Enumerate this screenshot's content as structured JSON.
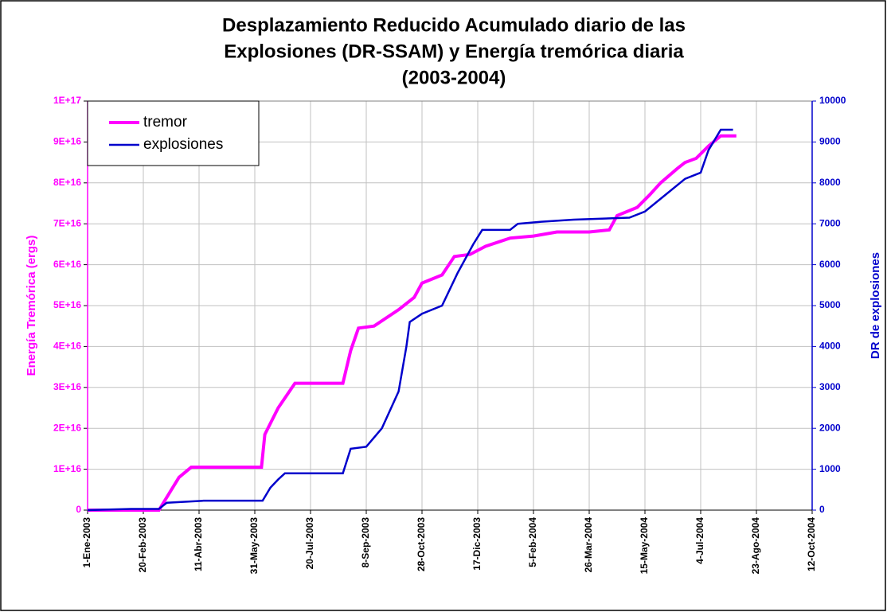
{
  "chart_data": {
    "type": "line",
    "title": [
      "Desplazamiento Reducido Acumulado diario de las",
      "Explosiones (DR-SSAM) y Energía tremórica diaria",
      "(2003-2004)"
    ],
    "ylabel": "Energía Tremórica (ergs)",
    "y2label": "DR de explosiones",
    "xlim": [
      "2003-01-01",
      "2004-10-12"
    ],
    "xticks": [
      {
        "value": "2003-01-01",
        "label": "1-Ene-2003"
      },
      {
        "value": "2003-02-20",
        "label": "20-Feb-2003"
      },
      {
        "value": "2003-04-11",
        "label": "11-Abr-2003"
      },
      {
        "value": "2003-05-31",
        "label": "31-May-2003"
      },
      {
        "value": "2003-07-20",
        "label": "20-Jul-2003"
      },
      {
        "value": "2003-09-08",
        "label": "8-Sep-2003"
      },
      {
        "value": "2003-10-28",
        "label": "28-Oct-2003"
      },
      {
        "value": "2003-12-17",
        "label": "17-Dic-2003"
      },
      {
        "value": "2004-02-05",
        "label": "5-Feb-2004"
      },
      {
        "value": "2004-03-26",
        "label": "26-Mar-2004"
      },
      {
        "value": "2004-05-15",
        "label": "15-May-2004"
      },
      {
        "value": "2004-07-04",
        "label": "4-Jul-2004"
      },
      {
        "value": "2004-08-23",
        "label": "23-Ago-2004"
      },
      {
        "value": "2004-10-12",
        "label": "12-Oct-2004"
      }
    ],
    "ylim": [
      0,
      1e+17
    ],
    "yticks": [
      0,
      {
        "value": 1e+16,
        "label": "1E+16"
      },
      {
        "value": 2e+16,
        "label": "2E+16"
      },
      {
        "value": 3e+16,
        "label": "3E+16"
      },
      {
        "value": 4e+16,
        "label": "4E+16"
      },
      {
        "value": 5e+16,
        "label": "5E+16"
      },
      {
        "value": 6e+16,
        "label": "6E+16"
      },
      {
        "value": 7e+16,
        "label": "7E+16"
      },
      {
        "value": 8e+16,
        "label": "8E+16"
      },
      {
        "value": 9e+16,
        "label": "9E+16"
      },
      {
        "value": 1e+17,
        "label": "1E+17"
      }
    ],
    "y2lim": [
      0,
      10000
    ],
    "y2ticks": [
      0,
      1000,
      2000,
      3000,
      4000,
      5000,
      6000,
      7000,
      8000,
      9000,
      10000
    ],
    "grid": true,
    "legend": "upper left",
    "series": [
      {
        "name": "tremor",
        "color": "#ff00ff",
        "axis": "y",
        "x": [
          "2003-01-01",
          "2003-03-06",
          "2003-03-24",
          "2003-04-04",
          "2003-06-06",
          "2003-06-09",
          "2003-06-21",
          "2003-07-06",
          "2003-08-18",
          "2003-08-25",
          "2003-09-01",
          "2003-09-15",
          "2003-10-07",
          "2003-10-21",
          "2003-10-28",
          "2003-11-15",
          "2003-11-26",
          "2003-12-10",
          "2003-12-24",
          "2004-01-15",
          "2004-02-05",
          "2004-02-26",
          "2004-03-26",
          "2004-04-13",
          "2004-04-20",
          "2004-05-08",
          "2004-05-19",
          "2004-05-29",
          "2004-06-13",
          "2004-06-20",
          "2004-06-30",
          "2004-07-11",
          "2004-07-22",
          "2004-08-05"
        ],
        "values": [
          0,
          0,
          8000000000000000.0,
          1.05e+16,
          1.05e+16,
          1.85e+16,
          2.5e+16,
          3.1e+16,
          3.1e+16,
          3.9e+16,
          4.45e+16,
          4.5e+16,
          4.9e+16,
          5.2e+16,
          5.55e+16,
          5.75e+16,
          6.2e+16,
          6.25e+16,
          6.45e+16,
          6.65e+16,
          6.7e+16,
          6.8e+16,
          6.8e+16,
          6.85e+16,
          7.2e+16,
          7.4e+16,
          7.7e+16,
          8e+16,
          8.35e+16,
          8.5e+16,
          8.6e+16,
          8.9e+16,
          9.15e+16,
          9.15e+16
        ]
      },
      {
        "name": "explosiones",
        "color": "#0000cc",
        "axis": "y2",
        "x": [
          "2003-01-01",
          "2003-02-09",
          "2003-03-06",
          "2003-03-13",
          "2003-04-15",
          "2003-06-07",
          "2003-06-14",
          "2003-06-21",
          "2003-06-27",
          "2003-08-18",
          "2003-08-25",
          "2003-09-08",
          "2003-09-22",
          "2003-10-07",
          "2003-10-14",
          "2003-10-17",
          "2003-10-28",
          "2003-11-15",
          "2003-11-29",
          "2003-12-13",
          "2003-12-21",
          "2004-01-15",
          "2004-01-22",
          "2004-02-12",
          "2004-03-12",
          "2004-05-01",
          "2004-05-15",
          "2004-06-02",
          "2004-06-20",
          "2004-07-04",
          "2004-07-11",
          "2004-07-22",
          "2004-08-02"
        ],
        "values": [
          0,
          30,
          30,
          180,
          230,
          230,
          550,
          750,
          900,
          900,
          1500,
          1550,
          2000,
          2900,
          4000,
          4600,
          4800,
          5000,
          5800,
          6500,
          6850,
          6850,
          7000,
          7050,
          7100,
          7150,
          7300,
          7700,
          8100,
          8250,
          8800,
          9300,
          9300
        ]
      }
    ]
  }
}
